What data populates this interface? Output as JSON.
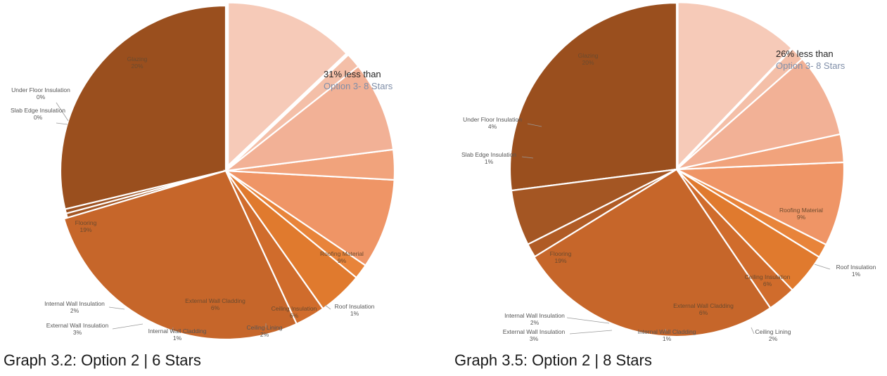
{
  "chart_data": [
    {
      "type": "pie",
      "title": "Graph 3.2: Option 2 | 6 Stars",
      "annotation": [
        "31% less than",
        "Option 3- 8 Stars"
      ],
      "start_angle_deg": 0,
      "slices": [
        {
          "label": "Glazing",
          "value_label": "20%",
          "value": 20,
          "color": "#9a4f1e"
        },
        {
          "label": "Under Floor Insulation",
          "value_label": "0%",
          "value": 0.3,
          "color": "#9e5221"
        },
        {
          "label": "Slab Edge Insulation",
          "value_label": "0%",
          "value": 0.3,
          "color": "#a45623"
        },
        {
          "label": "Flooring",
          "value_label": "19%",
          "value": 19,
          "color": "#c6662a"
        },
        {
          "label": "Internal Wall Insulation",
          "value_label": "2%",
          "value": 2,
          "color": "#d06c2c"
        },
        {
          "label": "External Wall Insulation",
          "value_label": "3%",
          "value": 3,
          "color": "#e07a2e"
        },
        {
          "label": "Internal Wall Cladding",
          "value_label": "1%",
          "value": 1,
          "color": "#e8843a"
        },
        {
          "label": "External Wall Cladding",
          "value_label": "6%",
          "value": 6,
          "color": "#ef9566"
        },
        {
          "label": "Ceiling Lining",
          "value_label": "2%",
          "value": 2,
          "color": "#f1a37c"
        },
        {
          "label": "Ceiling Insulation",
          "value_label": "6%",
          "value": 6,
          "color": "#f2b196"
        },
        {
          "label": "Roof Insulation",
          "value_label": "1%",
          "value": 1,
          "color": "#f4bfa8"
        },
        {
          "label": "Roofing Material",
          "value_label": "9%",
          "value": 9,
          "color": "#f6cab8"
        }
      ]
    },
    {
      "type": "pie",
      "title": "Graph 3.5: Option 2 | 8 Stars",
      "annotation": [
        "26% less than",
        "Option 3- 8 Stars"
      ],
      "start_angle_deg": 0,
      "slices": [
        {
          "label": "Glazing",
          "value_label": "20%",
          "value": 20,
          "color": "#9a4f1e"
        },
        {
          "label": "Under Floor Insulation",
          "value_label": "4%",
          "value": 4,
          "color": "#a45623"
        },
        {
          "label": "Slab Edge Insulation",
          "value_label": "1%",
          "value": 1,
          "color": "#b05b25"
        },
        {
          "label": "Flooring",
          "value_label": "19%",
          "value": 19,
          "color": "#c6662a"
        },
        {
          "label": "Internal Wall Insulation",
          "value_label": "2%",
          "value": 2,
          "color": "#d06c2c"
        },
        {
          "label": "External Wall Insulation",
          "value_label": "3%",
          "value": 3,
          "color": "#e07a2e"
        },
        {
          "label": "Internal Wall Cladding",
          "value_label": "1%",
          "value": 1,
          "color": "#e8843a"
        },
        {
          "label": "External Wall Cladding",
          "value_label": "6%",
          "value": 6,
          "color": "#ef9566"
        },
        {
          "label": "Ceiling Lining",
          "value_label": "2%",
          "value": 2,
          "color": "#f1a37c"
        },
        {
          "label": "Ceiling Insulation",
          "value_label": "6%",
          "value": 6,
          "color": "#f2b196"
        },
        {
          "label": "Roof Insulation",
          "value_label": "1%",
          "value": 1,
          "color": "#f4bfa8"
        },
        {
          "label": "Roofing Material",
          "value_label": "9%",
          "value": 9,
          "color": "#f6cab8"
        }
      ]
    }
  ]
}
